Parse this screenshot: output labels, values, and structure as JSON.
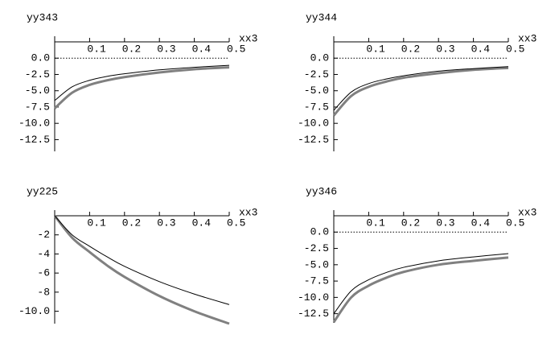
{
  "chart_data": [
    {
      "type": "line",
      "ylabel": "yy343",
      "xlabel": "xx3",
      "x": [
        0,
        0.05,
        0.1,
        0.15,
        0.2,
        0.3,
        0.4,
        0.5
      ],
      "series": [
        {
          "color": "#000000",
          "values": [
            -6.5,
            -4.4,
            -3.4,
            -2.8,
            -2.4,
            -1.8,
            -1.4,
            -1.1
          ]
        },
        {
          "color": "#808080",
          "values": [
            -7.7,
            -5.3,
            -4.1,
            -3.4,
            -2.9,
            -2.2,
            -1.7,
            -1.4
          ]
        }
      ],
      "xlim": [
        0,
        0.5
      ],
      "xticks": [
        0.1,
        0.2,
        0.3,
        0.4,
        0.5
      ],
      "ylim": [
        -14.3,
        2.5
      ],
      "yticks": [
        {
          "value": 0,
          "label": "0.0"
        },
        -2.5,
        {
          "value": -5,
          "label": "-5.0"
        },
        -7.5,
        {
          "value": -10,
          "label": "-10.0"
        },
        -12.5
      ],
      "reference_line": 0
    },
    {
      "type": "line",
      "ylabel": "yy344",
      "xlabel": "xx3",
      "x": [
        0,
        0.05,
        0.1,
        0.15,
        0.2,
        0.3,
        0.4,
        0.5
      ],
      "series": [
        {
          "color": "#000000",
          "values": [
            -8.0,
            -5.2,
            -3.9,
            -3.2,
            -2.7,
            -2.0,
            -1.6,
            -1.3
          ]
        },
        {
          "color": "#808080",
          "values": [
            -8.8,
            -5.8,
            -4.4,
            -3.6,
            -3.0,
            -2.3,
            -1.8,
            -1.5
          ]
        }
      ],
      "xlim": [
        0,
        0.5
      ],
      "xticks": [
        0.1,
        0.2,
        0.3,
        0.4,
        0.5
      ],
      "ylim": [
        -14.3,
        2.5
      ],
      "yticks": [
        {
          "value": 0,
          "label": "0.0"
        },
        -2.5,
        {
          "value": -5,
          "label": "-5.0"
        },
        -7.5,
        {
          "value": -10,
          "label": "-10.0"
        },
        -12.5
      ],
      "reference_line": 0
    },
    {
      "type": "line",
      "ylabel": "yy225",
      "xlabel": "xx3",
      "x": [
        0,
        0.05,
        0.1,
        0.15,
        0.2,
        0.3,
        0.4,
        0.5
      ],
      "series": [
        {
          "color": "#000000",
          "values": [
            0,
            -2.0,
            -3.2,
            -4.3,
            -5.3,
            -6.9,
            -8.2,
            -9.3
          ]
        },
        {
          "color": "#808080",
          "values": [
            0,
            -2.3,
            -3.8,
            -5.2,
            -6.4,
            -8.4,
            -10.0,
            -11.3
          ]
        }
      ],
      "xlim": [
        0,
        0.5
      ],
      "xticks": [
        0.1,
        0.2,
        0.3,
        0.4,
        0.5
      ],
      "ylim": [
        -11.3,
        0
      ],
      "yticks": [
        -2,
        -4,
        -6,
        -8,
        {
          "value": -10,
          "label": "-10.0"
        }
      ]
    },
    {
      "type": "line",
      "ylabel": "yy346",
      "xlabel": "xx3",
      "x": [
        0,
        0.05,
        0.1,
        0.15,
        0.2,
        0.3,
        0.4,
        0.5
      ],
      "series": [
        {
          "color": "#000000",
          "values": [
            -12.5,
            -9.0,
            -7.3,
            -6.2,
            -5.4,
            -4.4,
            -3.8,
            -3.3
          ]
        },
        {
          "color": "#808080",
          "values": [
            -13.8,
            -10.0,
            -8.2,
            -7.0,
            -6.1,
            -5.0,
            -4.4,
            -3.9
          ]
        }
      ],
      "xlim": [
        0,
        0.5
      ],
      "xticks": [
        0.1,
        0.2,
        0.3,
        0.4,
        0.5
      ],
      "ylim": [
        -13.9,
        2.5
      ],
      "yticks": [
        {
          "value": 0,
          "label": "0.0"
        },
        -2.5,
        {
          "value": -5,
          "label": "-5.0"
        },
        -7.5,
        {
          "value": -10,
          "label": "-10.0"
        },
        -12.5
      ],
      "reference_line": 0
    }
  ]
}
